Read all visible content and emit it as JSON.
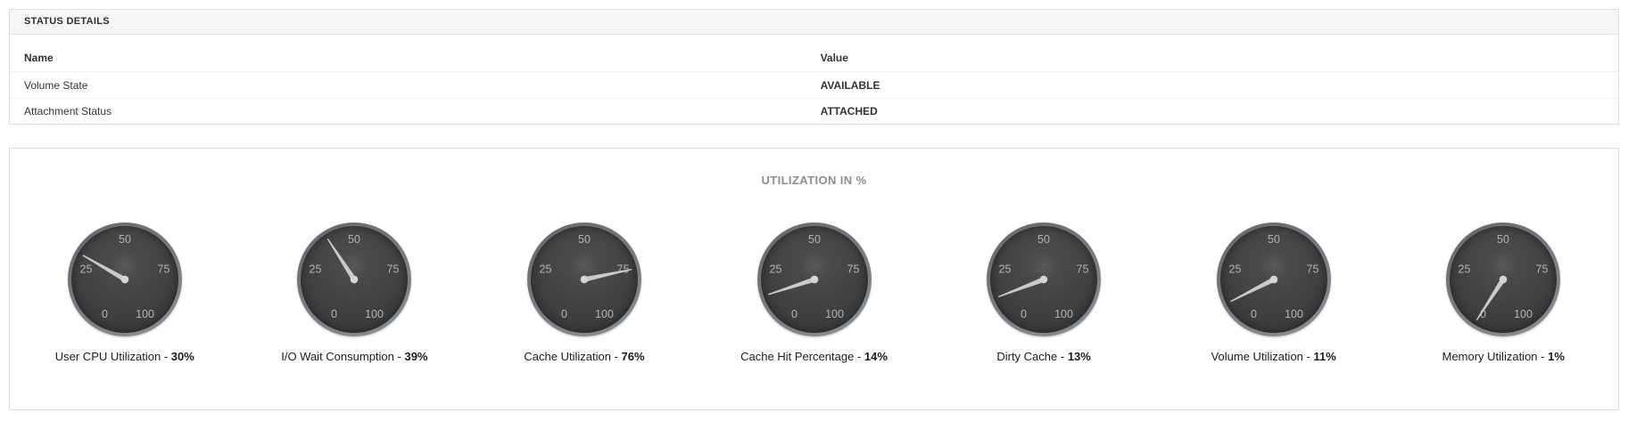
{
  "status_panel": {
    "title": "STATUS DETAILS",
    "columns": {
      "name": "Name",
      "value": "Value"
    },
    "rows": [
      {
        "name": "Volume State",
        "value": "AVAILABLE"
      },
      {
        "name": "Attachment Status",
        "value": "ATTACHED"
      }
    ]
  },
  "utilization_panel": {
    "title": "UTILIZATION IN %",
    "caption_separator": " - ",
    "ticks": [
      0,
      25,
      50,
      75,
      100
    ],
    "gauges": [
      {
        "label": "User CPU Utilization",
        "value": 30,
        "percent_text": "30%"
      },
      {
        "label": "I/O Wait Consumption",
        "value": 39,
        "percent_text": "39%"
      },
      {
        "label": "Cache Utilization",
        "value": 76,
        "percent_text": "76%"
      },
      {
        "label": "Cache Hit Percentage",
        "value": 14,
        "percent_text": "14%"
      },
      {
        "label": "Dirty Cache",
        "value": 13,
        "percent_text": "13%"
      },
      {
        "label": "Volume Utilization",
        "value": 11,
        "percent_text": "11%"
      },
      {
        "label": "Memory Utilization",
        "value": 1,
        "percent_text": "1%"
      }
    ]
  },
  "chart_data": {
    "type": "gauge",
    "title": "UTILIZATION IN %",
    "range": [
      0,
      100
    ],
    "ticks": [
      0,
      25,
      50,
      75,
      100
    ],
    "start_angle_deg": 240,
    "sweep_deg": 300,
    "series": [
      {
        "name": "User CPU Utilization",
        "value": 30
      },
      {
        "name": "I/O Wait Consumption",
        "value": 39
      },
      {
        "name": "Cache Utilization",
        "value": 76
      },
      {
        "name": "Cache Hit Percentage",
        "value": 14
      },
      {
        "name": "Dirty Cache",
        "value": 13
      },
      {
        "name": "Volume Utilization",
        "value": 11
      },
      {
        "name": "Memory Utilization",
        "value": 1
      }
    ]
  },
  "colors": {
    "panel_border": "#dddddd",
    "panel_header_bg": "#f6f6f6",
    "row_divider": "#f0f0f0",
    "gauge_rim": "#7b8186",
    "gauge_face": "#404040",
    "gauge_tick_label": "#b4b4b4",
    "needle": "#cbcbcb",
    "title_gray": "#8a8f93",
    "text_dark": "#333333"
  }
}
